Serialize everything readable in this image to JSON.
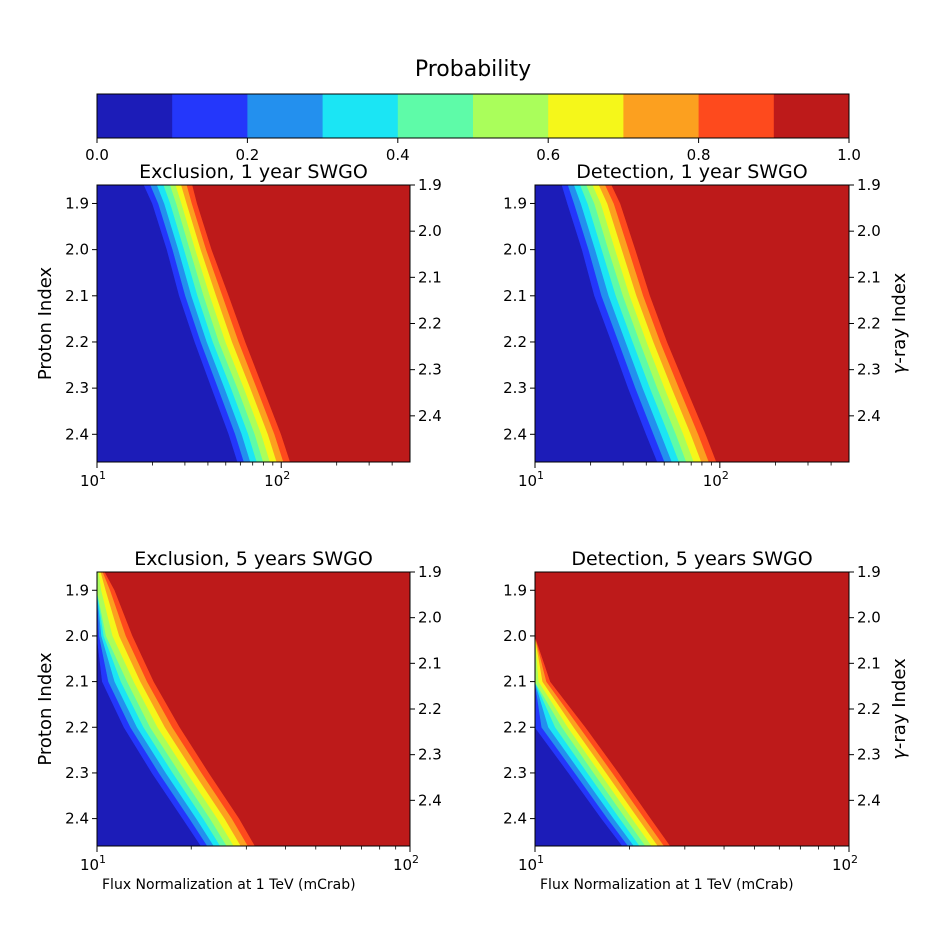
{
  "colorbar": {
    "title": "Probability",
    "ticks": [
      "0.0",
      "0.2",
      "0.4",
      "0.6",
      "0.8",
      "1.0"
    ],
    "range": [
      0.0,
      1.0
    ],
    "levels": [
      0.0,
      0.1,
      0.2,
      0.3,
      0.4,
      0.5,
      0.6,
      0.7,
      0.8,
      0.9,
      1.0
    ],
    "colors": [
      "#1c1cb8",
      "#2437fb",
      "#2390ee",
      "#1be5f4",
      "#5efba8",
      "#aafe5b",
      "#f5f71a",
      "#fca01f",
      "#fe4a1d",
      "#bd1a1a"
    ]
  },
  "labels": {
    "proton_index": "Proton Index",
    "gamma_index_prefix": "γ",
    "gamma_index_suffix": "-ray Index",
    "flux_label": "Flux Normalization at 1 TeV (mCrab)"
  },
  "chart_data": [
    {
      "type": "contour",
      "title": "Exclusion, 1 year SWGO",
      "xscale": "log",
      "xlim": [
        10,
        500
      ],
      "x_ticks": [
        {
          "base": "10",
          "exp": "1",
          "value": 10
        },
        {
          "base": "10",
          "exp": "2",
          "value": 100
        }
      ],
      "ylim_left": [
        2.46,
        1.86
      ],
      "left_ticks": [
        "1.9",
        "2.0",
        "2.1",
        "2.2",
        "2.3",
        "2.4"
      ],
      "ylim_right": [
        2.5,
        1.9
      ],
      "right_ticks": [
        "1.9",
        "2.0",
        "2.1",
        "2.2",
        "2.3",
        "2.4"
      ],
      "proton_index": [
        1.86,
        1.9,
        2.0,
        2.1,
        2.2,
        2.3,
        2.4,
        2.46
      ],
      "contour_flux_mcrab": {
        "0.1": [
          18,
          20,
          24,
          28,
          34,
          42,
          52,
          58
        ],
        "0.5": [
          25,
          27,
          32,
          38,
          46,
          58,
          72,
          80
        ],
        "0.9": [
          33,
          35,
          42,
          52,
          64,
          80,
          100,
          112
        ]
      }
    },
    {
      "type": "contour",
      "title": "Detection, 1 year SWGO",
      "xscale": "log",
      "xlim": [
        10,
        500
      ],
      "x_ticks": [
        {
          "base": "10",
          "exp": "1",
          "value": 10
        },
        {
          "base": "10",
          "exp": "2",
          "value": 100
        }
      ],
      "ylim_left": [
        2.46,
        1.86
      ],
      "left_ticks": [
        "1.9",
        "2.0",
        "2.1",
        "2.2",
        "2.3",
        "2.4"
      ],
      "ylim_right": [
        2.5,
        1.9
      ],
      "right_ticks": [
        "1.9",
        "2.0",
        "2.1",
        "2.2",
        "2.3",
        "2.4"
      ],
      "proton_index": [
        1.86,
        1.9,
        2.0,
        2.1,
        2.2,
        2.3,
        2.4,
        2.46
      ],
      "contour_flux_mcrab": {
        "0.1": [
          14,
          15,
          18,
          21,
          26,
          32,
          40,
          46
        ],
        "0.5": [
          19,
          21,
          25,
          30,
          37,
          46,
          58,
          66
        ],
        "0.9": [
          26,
          29,
          35,
          42,
          52,
          66,
          84,
          96
        ]
      }
    },
    {
      "type": "contour",
      "title": "Exclusion, 5 years SWGO",
      "xscale": "log",
      "xlim": [
        10,
        100
      ],
      "x_ticks": [
        {
          "base": "10",
          "exp": "1",
          "value": 10
        },
        {
          "base": "10",
          "exp": "2",
          "value": 100
        }
      ],
      "ylim_left": [
        2.46,
        1.86
      ],
      "left_ticks": [
        "1.9",
        "2.0",
        "2.1",
        "2.2",
        "2.3",
        "2.4"
      ],
      "ylim_right": [
        2.5,
        1.9
      ],
      "right_ticks": [
        "1.9",
        "2.0",
        "2.1",
        "2.2",
        "2.3",
        "2.4"
      ],
      "proton_index": [
        1.86,
        1.9,
        2.0,
        2.1,
        2.2,
        2.3,
        2.4,
        2.46
      ],
      "contour_flux_mcrab": {
        "0.1": [
          null,
          10,
          10,
          10.4,
          12.2,
          15,
          18.8,
          21.5
        ],
        "0.5": [
          10,
          10,
          10.7,
          12.5,
          14.8,
          18.4,
          23,
          26
        ],
        "0.9": [
          10.6,
          11.4,
          13,
          15.2,
          18.4,
          22.8,
          28.5,
          32
        ]
      }
    },
    {
      "type": "contour",
      "title": "Detection, 5 years SWGO",
      "xscale": "log",
      "xlim": [
        10,
        100
      ],
      "x_ticks": [
        {
          "base": "10",
          "exp": "1",
          "value": 10
        },
        {
          "base": "10",
          "exp": "2",
          "value": 100
        }
      ],
      "ylim_left": [
        2.46,
        1.86
      ],
      "left_ticks": [
        "1.9",
        "2.0",
        "2.1",
        "2.2",
        "2.3",
        "2.4"
      ],
      "ylim_right": [
        2.5,
        1.9
      ],
      "right_ticks": [
        "1.9",
        "2.0",
        "2.1",
        "2.2",
        "2.3",
        "2.4"
      ],
      "proton_index": [
        1.86,
        1.9,
        2.0,
        2.1,
        2.2,
        2.3,
        2.4,
        2.46
      ],
      "contour_flux_mcrab": {
        "0.1": [
          null,
          null,
          null,
          null,
          10,
          12.8,
          16.3,
          19
        ],
        "0.5": [
          null,
          null,
          null,
          10,
          12.2,
          15.4,
          19.5,
          22.5
        ],
        "0.9": [
          null,
          null,
          null,
          11.2,
          14.5,
          18.5,
          23.4,
          27
        ]
      }
    }
  ]
}
